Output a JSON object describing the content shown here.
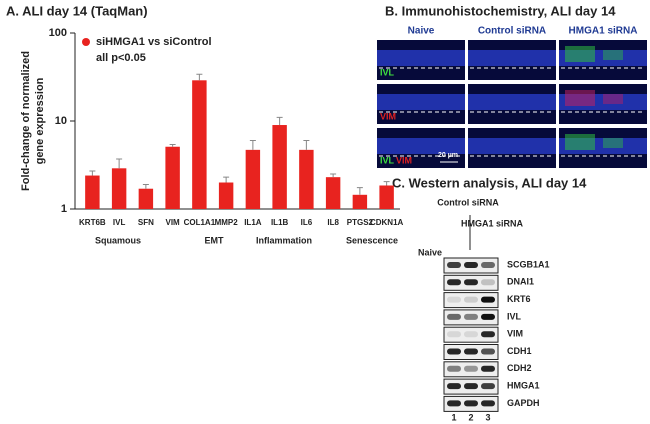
{
  "chart_data": {
    "type": "bar",
    "title": "A. ALI day 14 (TaqMan)",
    "y_label": [
      "Fold-change of normalized",
      "gene expression"
    ],
    "categories": [
      "KRT6B",
      "IVL",
      "SFN",
      "VIM",
      "COL1A1",
      "MMP2",
      "IL1A",
      "IL1B",
      "IL6",
      "IL8",
      "PTGS2",
      "CDKN1A"
    ],
    "series": [
      {
        "name": "siHMGA1 vs siControl",
        "color": "#e8231f",
        "values": [
          2.4,
          2.9,
          1.7,
          5.1,
          29,
          2.0,
          4.7,
          9,
          4.7,
          2.3,
          1.45,
          1.85
        ],
        "errors": [
          0.3,
          0.8,
          0.2,
          0.3,
          5,
          0.3,
          1.3,
          2,
          1.3,
          0.2,
          0.3,
          0.2
        ]
      }
    ],
    "annotations": [
      "all p<0.05",
      "Squamous",
      "EMT",
      "Inflammation",
      "Senescence"
    ],
    "ylim": [
      1,
      100
    ],
    "yticks": [
      1,
      10,
      100
    ],
    "log_scale": true,
    "grid": false,
    "legend": "top-left"
  },
  "panel_b": {
    "title": "B. Immunohistochemistry, ALI day 14",
    "columns": [
      "Naive",
      "Control siRNA",
      "HMGA1 siRNA"
    ],
    "markers": [
      "IVL",
      "VIM"
    ],
    "scale_bar": "20 µm"
  },
  "panel_c": {
    "title": "C. Western analysis, ALI day 14",
    "lanes": [
      "Naive",
      "Control siRNA",
      "HMGA1 siRNA"
    ],
    "lane_numbers": [
      "1",
      "2",
      "3"
    ],
    "proteins": [
      "SCGB1A1",
      "DNAI1",
      "KRT6",
      "IVL",
      "VIM",
      "CDH1",
      "CDH2",
      "HMGA1",
      "GAPDH"
    ]
  }
}
